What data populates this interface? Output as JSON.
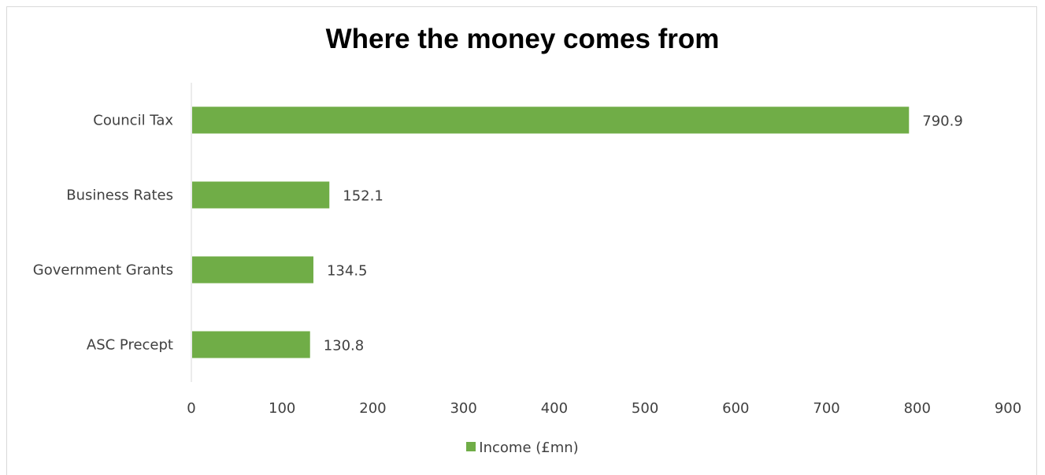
{
  "chart_data": {
    "type": "bar",
    "orientation": "horizontal",
    "title": "Where the money comes from",
    "categories": [
      "Council Tax",
      "Business Rates",
      "Government Grants",
      "ASC Precept"
    ],
    "series": [
      {
        "name": "Income (£mn)",
        "values": [
          790.9,
          152.1,
          134.5,
          130.8
        ],
        "color": "#70ad47"
      }
    ],
    "data_labels": [
      "790.9",
      "152.1",
      "134.5",
      "130.8"
    ],
    "xlim": [
      0,
      900
    ],
    "xticks": [
      0,
      100,
      200,
      300,
      400,
      500,
      600,
      700,
      800,
      900
    ],
    "xlabel": "",
    "ylabel": "",
    "grid": false,
    "legend_position": "bottom"
  }
}
